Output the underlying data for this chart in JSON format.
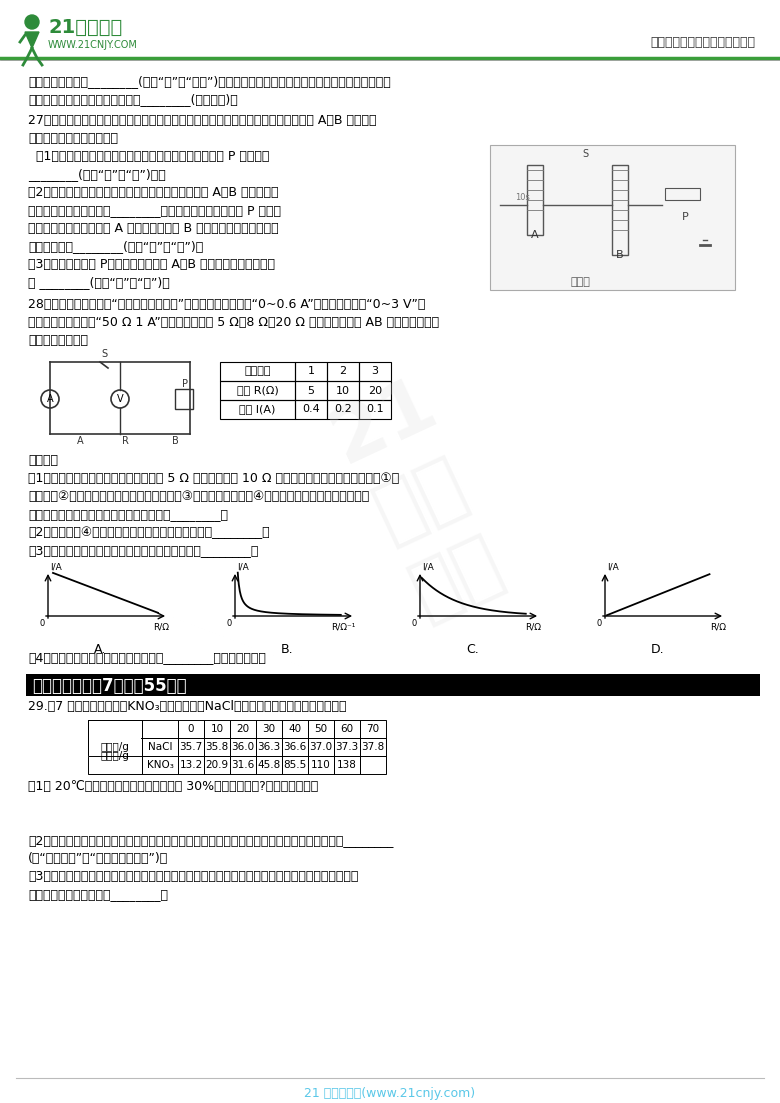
{
  "page_bg": "#ffffff",
  "header_right": "中小学教育资源及组卷应用平台",
  "footer_text": "21 世纪教育网(www.21cnjy.com)",
  "footer_color": "#5bc8e8",
  "table1_headers": [
    "实验组别",
    "1",
    "2",
    "3"
  ],
  "table1_row1": [
    "电阵 R(Ω)",
    "5",
    "10",
    "20"
  ],
  "table1_row2": [
    "电流 I(A)",
    "0.4",
    "0.2",
    "0.1"
  ],
  "graph_labels": [
    "A.",
    "B.",
    "C.",
    "D."
  ],
  "section_header": "四、解答题（关7题；內55分）",
  "q29_intro": "29.（7 分）现有确酸鉶（KNO₃）和氯化钓（NaCl）两种物质的溶解度数据如下表："
}
